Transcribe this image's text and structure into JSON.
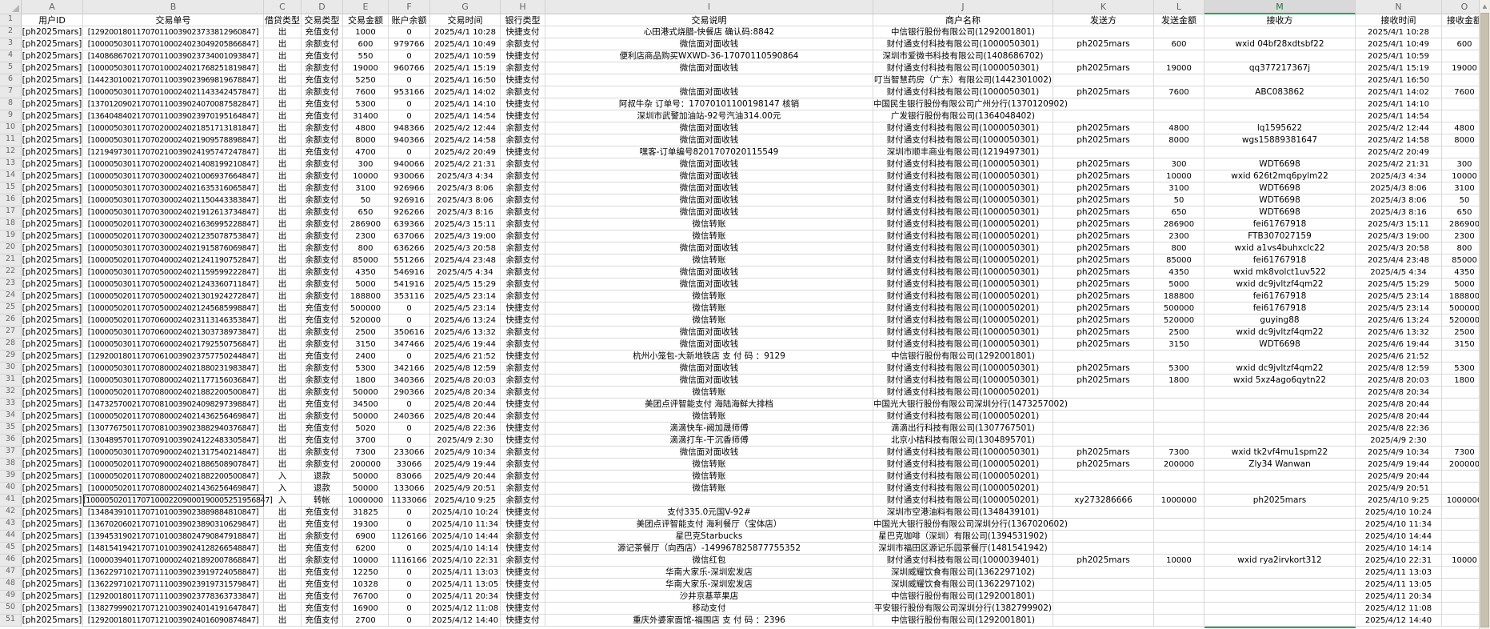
{
  "sheet": {
    "column_letters": [
      "A",
      "B",
      "C",
      "D",
      "E",
      "F",
      "G",
      "H",
      "I",
      "J",
      "K",
      "L",
      "M",
      "N",
      "O"
    ],
    "selected_column": "M",
    "active_cell": {
      "column": "B",
      "row": 41
    },
    "header_row": [
      "用户ID",
      "交易单号",
      "借贷类型",
      "交易类型",
      "交易金额",
      "账户余额",
      "交易时间",
      "银行类型",
      "交易说明",
      "商户名称",
      "发送方",
      "发送金额",
      "接收方",
      "接收时间",
      "接收金额"
    ],
    "rows": [
      [
        "[ph2025mars]",
        "[129200180117070110039023733812960847]",
        "出",
        "充值支付",
        "1000",
        "0",
        "2025/4/1 10:28",
        "快捷支付",
        "心田港式烧腊-快餐店 确认码:8842",
        "中信银行股份有限公司(1292001801)",
        "",
        "",
        "",
        "2025/4/1 10:28",
        ""
      ],
      [
        "[ph2025mars]",
        "[100005030117070100024023049205866847]",
        "出",
        "余额支付",
        "600",
        "979766",
        "2025/4/1 10:49",
        "余额支付",
        "微信面对面收钱",
        "财付通支付科技有限公司(1000050301)",
        "ph2025mars",
        "600",
        "wxid 04bf28xdtsbf22",
        "2025/4/1 10:49",
        "600"
      ],
      [
        "[ph2025mars]",
        "[140868670217070110039023734001093847]",
        "出",
        "充值支付",
        "550",
        "0",
        "2025/4/1 10:59",
        "快捷支付",
        "便利店商品购买WXWD-36-17070110590864",
        "深圳市爱微书科技有限公司(1408686702)",
        "",
        "",
        "",
        "2025/4/1 10:59",
        ""
      ],
      [
        "[ph2025mars]",
        "[100005030117070100024021768251819847]",
        "出",
        "余额支付",
        "19000",
        "960766",
        "2025/4/1 15:19",
        "余额支付",
        "微信面对面收钱",
        "财付通支付科技有限公司(1000050301)",
        "ph2025mars",
        "19000",
        "qq377217367j",
        "2025/4/1 15:19",
        "19000"
      ],
      [
        "[ph2025mars]",
        "[144230100217070110039023969819678847]",
        "出",
        "充值支付",
        "5250",
        "0",
        "2025/4/1 16:50",
        "快捷支付",
        "",
        "叮当智慧药房（广东）有限公司(1442301002)",
        "",
        "",
        "",
        "2025/4/1 16:50",
        ""
      ],
      [
        "[ph2025mars]",
        "[100005030117070100024021143342457847]",
        "出",
        "余额支付",
        "7600",
        "953166",
        "2025/4/1 14:02",
        "余额支付",
        "微信面对面收钱",
        "财付通支付科技有限公司(1000050301)",
        "ph2025mars",
        "7600",
        "ABC083862",
        "2025/4/1 14:02",
        "7600"
      ],
      [
        "[ph2025mars]",
        "[137012090217070110039024070087582847]",
        "出",
        "充值支付",
        "5300",
        "0",
        "2025/4/1 14:10",
        "快捷支付",
        "阿叔牛杂 订单号：17070101100198147 核销",
        "中国民生银行股份有限公司广州分行(1370120902)",
        "",
        "",
        "",
        "2025/4/1 14:10",
        ""
      ],
      [
        "[ph2025mars]",
        "[136404840217070110039023970195164847]",
        "出",
        "充值支付",
        "31400",
        "0",
        "2025/4/1 14:54",
        "快捷支付",
        "深圳市武警加油站-92号汽油314.00元",
        "广发银行股份有限公司(1364048402)",
        "",
        "",
        "",
        "2025/4/1 14:54",
        ""
      ],
      [
        "[ph2025mars]",
        "[100005030117070200024021851713181847]",
        "出",
        "余额支付",
        "4800",
        "948366",
        "2025/4/2 12:44",
        "余额支付",
        "微信面对面收钱",
        "财付通支付科技有限公司(1000050301)",
        "ph2025mars",
        "4800",
        "lq1595622",
        "2025/4/2 12:44",
        "4800"
      ],
      [
        "[ph2025mars]",
        "[100005030117070200024021909578898847]",
        "出",
        "余额支付",
        "8000",
        "940366",
        "2025/4/2 14:58",
        "余额支付",
        "微信面对面收钱",
        "财付通支付科技有限公司(1000050301)",
        "ph2025mars",
        "8000",
        "wgs15889381647",
        "2025/4/2 14:58",
        "8000"
      ],
      [
        "[ph2025mars]",
        "[121949730117070210039024195747247847]",
        "出",
        "充值支付",
        "4700",
        "0",
        "2025/4/2 20:49",
        "快捷支付",
        "嘿客-订单编号8201707020115549",
        "深圳市顺丰商业有限公司(1219497301)",
        "",
        "",
        "",
        "2025/4/2 20:49",
        ""
      ],
      [
        "[ph2025mars]",
        "[100005030117070200024021408199210847]",
        "出",
        "余额支付",
        "300",
        "940066",
        "2025/4/2 21:31",
        "余额支付",
        "微信面对面收钱",
        "财付通支付科技有限公司(1000050301)",
        "ph2025mars",
        "300",
        "WDT6698",
        "2025/4/2 21:31",
        "300"
      ],
      [
        "[ph2025mars]",
        "[100005030117070300024021006937664847]",
        "出",
        "余额支付",
        "10000",
        "930066",
        "2025/4/3 4:34",
        "余额支付",
        "微信面对面收钱",
        "财付通支付科技有限公司(1000050301)",
        "ph2025mars",
        "10000",
        "wxid 626t2mq6pylm22",
        "2025/4/3 4:34",
        "10000"
      ],
      [
        "[ph2025mars]",
        "[100005030117070300024021635316065847]",
        "出",
        "余额支付",
        "3100",
        "926966",
        "2025/4/3 8:06",
        "余额支付",
        "微信面对面收钱",
        "财付通支付科技有限公司(1000050301)",
        "ph2025mars",
        "3100",
        "WDT6698",
        "2025/4/3 8:06",
        "3100"
      ],
      [
        "[ph2025mars]",
        "[100005030117070300024021150443383847]",
        "出",
        "余额支付",
        "50",
        "926916",
        "2025/4/3 8:06",
        "余额支付",
        "微信面对面收钱",
        "财付通支付科技有限公司(1000050301)",
        "ph2025mars",
        "50",
        "WDT6698",
        "2025/4/3 8:06",
        "50"
      ],
      [
        "[ph2025mars]",
        "[100005030117070300024021912613734847]",
        "出",
        "余额支付",
        "650",
        "926266",
        "2025/4/3 8:16",
        "余额支付",
        "微信面对面收钱",
        "财付通支付科技有限公司(1000050301)",
        "ph2025mars",
        "650",
        "WDT6698",
        "2025/4/3 8:16",
        "650"
      ],
      [
        "[ph2025mars]",
        "[100005020117070300024021636995228847]",
        "出",
        "余额支付",
        "286900",
        "639366",
        "2025/4/3 15:11",
        "余额支付",
        "微信转账",
        "财付通支付科技有限公司(1000050201)",
        "ph2025mars",
        "286900",
        "fei61767918",
        "2025/4/3 15:11",
        "286900"
      ],
      [
        "[ph2025mars]",
        "[100005020117070300024021235078753847]",
        "出",
        "余额支付",
        "2300",
        "637066",
        "2025/4/3 19:00",
        "余额支付",
        "微信转账",
        "财付通支付科技有限公司(1000050201)",
        "ph2025mars",
        "2300",
        "FTB307027159",
        "2025/4/3 19:00",
        "2300"
      ],
      [
        "[ph2025mars]",
        "[100005030117070300024021915876069847]",
        "出",
        "余额支付",
        "800",
        "636266",
        "2025/4/3 20:58",
        "余额支付",
        "微信面对面收钱",
        "财付通支付科技有限公司(1000050301)",
        "ph2025mars",
        "800",
        "wxid a1vs4buhxclc22",
        "2025/4/3 20:58",
        "800"
      ],
      [
        "[ph2025mars]",
        "[100005020117070400024021241190752847]",
        "出",
        "余额支付",
        "85000",
        "551266",
        "2025/4/4 23:48",
        "余额支付",
        "微信转账",
        "财付通支付科技有限公司(1000050201)",
        "ph2025mars",
        "85000",
        "fei61767918",
        "2025/4/4 23:48",
        "85000"
      ],
      [
        "[ph2025mars]",
        "[100005030117070500024021159599222847]",
        "出",
        "余额支付",
        "4350",
        "546916",
        "2025/4/5 4:34",
        "余额支付",
        "微信面对面收钱",
        "财付通支付科技有限公司(1000050301)",
        "ph2025mars",
        "4350",
        "wxid mk8volct1uv522",
        "2025/4/5 4:34",
        "4350"
      ],
      [
        "[ph2025mars]",
        "[100005030117070500024021243360711847]",
        "出",
        "余额支付",
        "5000",
        "541916",
        "2025/4/5 15:29",
        "余额支付",
        "微信面对面收钱",
        "财付通支付科技有限公司(1000050301)",
        "ph2025mars",
        "5000",
        "wxid dc9jvltzf4qm22",
        "2025/4/5 15:29",
        "5000"
      ],
      [
        "[ph2025mars]",
        "[100005020117070500024021301924272847]",
        "出",
        "余额支付",
        "188800",
        "353116",
        "2025/4/5 23:14",
        "余额支付",
        "微信转账",
        "财付通支付科技有限公司(1000050201)",
        "ph2025mars",
        "188800",
        "fei61767918",
        "2025/4/5 23:14",
        "188800"
      ],
      [
        "[ph2025mars]",
        "[100005020117070500024021245685998847]",
        "出",
        "充值支付",
        "500000",
        "0",
        "2025/4/5 23:14",
        "快捷支付",
        "微信转账",
        "财付通支付科技有限公司(1000050201)",
        "ph2025mars",
        "500000",
        "fei61767918",
        "2025/4/5 23:14",
        "500000"
      ],
      [
        "[ph2025mars]",
        "[100005020117070600024023113146353847]",
        "出",
        "充值支付",
        "520000",
        "0",
        "2025/4/6 13:24",
        "快捷支付",
        "微信转账",
        "财付通支付科技有限公司(1000050201)",
        "ph2025mars",
        "520000",
        "guying88",
        "2025/4/6 13:24",
        "520000"
      ],
      [
        "[ph2025mars]",
        "[100005030117070600024021303738973847]",
        "出",
        "余额支付",
        "2500",
        "350616",
        "2025/4/6 13:32",
        "余额支付",
        "微信面对面收钱",
        "财付通支付科技有限公司(1000050301)",
        "ph2025mars",
        "2500",
        "wxid dc9jvltzf4qm22",
        "2025/4/6 13:32",
        "2500"
      ],
      [
        "[ph2025mars]",
        "[100005030117070600024021792550756847]",
        "出",
        "余额支付",
        "3150",
        "347466",
        "2025/4/6 19:44",
        "余额支付",
        "微信面对面收钱",
        "财付通支付科技有限公司(1000050301)",
        "ph2025mars",
        "3150",
        "WDT6698",
        "2025/4/6 19:44",
        "3150"
      ],
      [
        "[ph2025mars]",
        "[129200180117070610039023757750244847]",
        "出",
        "充值支付",
        "2400",
        "0",
        "2025/4/6 21:52",
        "快捷支付",
        "杭州小笼包-大新地铁店 支 付 码 ：9129",
        "中信银行股份有限公司(1292001801)",
        "",
        "",
        "",
        "2025/4/6 21:52",
        ""
      ],
      [
        "[ph2025mars]",
        "[100005030117070800024021880231983847]",
        "出",
        "余额支付",
        "5300",
        "342166",
        "2025/4/8 12:59",
        "余额支付",
        "微信面对面收钱",
        "财付通支付科技有限公司(1000050301)",
        "ph2025mars",
        "5300",
        "wxid dc9jvltzf4qm22",
        "2025/4/8 12:59",
        "5300"
      ],
      [
        "[ph2025mars]",
        "[100005030117070800024021177156036847]",
        "出",
        "余额支付",
        "1800",
        "340366",
        "2025/4/8 20:03",
        "余额支付",
        "微信面对面收钱",
        "财付通支付科技有限公司(1000050301)",
        "ph2025mars",
        "1800",
        "wxid 5xz4ago6qytn22",
        "2025/4/8 20:03",
        "1800"
      ],
      [
        "[ph2025mars]",
        "[100005020117070800024021882200500847]",
        "出",
        "余额支付",
        "50000",
        "290366",
        "2025/4/8 20:34",
        "余额支付",
        "微信转账",
        "财付通支付科技有限公司(1000050201)",
        "",
        "",
        "",
        "2025/4/8 20:34",
        ""
      ],
      [
        "[ph2025mars]",
        "[147325700217070810039024098297398847]",
        "出",
        "充值支付",
        "34500",
        "0",
        "2025/4/8 20:44",
        "快捷支付",
        "美团点评智能支付 海陆海鲜大排档",
        "中国光大银行股份有限公司深圳分行(1473257002)",
        "",
        "",
        "",
        "2025/4/8 20:44",
        ""
      ],
      [
        "[ph2025mars]",
        "[100005020117070800024021436256469847]",
        "出",
        "余额支付",
        "50000",
        "240366",
        "2025/4/8 20:44",
        "余额支付",
        "微信转账",
        "财付通支付科技有限公司(1000050201)",
        "",
        "",
        "",
        "2025/4/8 20:44",
        ""
      ],
      [
        "[ph2025mars]",
        "[130776750117070810039023882940376847]",
        "出",
        "充值支付",
        "5020",
        "0",
        "2025/4/8 22:36",
        "快捷支付",
        "滴滴快车-阙加晟师傅",
        "滴滴出行科技有限公司(1307767501)",
        "",
        "",
        "",
        "2025/4/8 22:36",
        ""
      ],
      [
        "[ph2025mars]",
        "[130489570117070910039024122483305847]",
        "出",
        "充值支付",
        "3700",
        "0",
        "2025/4/9 2:30",
        "快捷支付",
        "滴滴打车-干沉香师傅",
        "北京小桔科技有限公司(1304895701)",
        "",
        "",
        "",
        "2025/4/9 2:30",
        ""
      ],
      [
        "[ph2025mars]",
        "[100005030117070900024021317540214847]",
        "出",
        "余额支付",
        "7300",
        "233066",
        "2025/4/9 10:34",
        "余额支付",
        "微信面对面收钱",
        "财付通支付科技有限公司(1000050301)",
        "ph2025mars",
        "7300",
        "wxid tk2vf4mu1spm22",
        "2025/4/9 10:34",
        "7300"
      ],
      [
        "[ph2025mars]",
        "[100005020117070900024021886508907847]",
        "出",
        "余额支付",
        "200000",
        "33066",
        "2025/4/9 19:44",
        "余额支付",
        "微信转账",
        "财付通支付科技有限公司(1000050201)",
        "ph2025mars",
        "200000",
        "Zly34 Wanwan",
        "2025/4/9 19:44",
        "200000"
      ],
      [
        "[ph2025mars]",
        "[100005020117070800024021882200500847]",
        "入",
        "退款",
        "50000",
        "83066",
        "2025/4/9 20:44",
        "余额支付",
        "微信转账",
        "财付通支付科技有限公司(1000050201)",
        "",
        "",
        "",
        "2025/4/9 20:44",
        ""
      ],
      [
        "[ph2025mars]",
        "[100005020117070800024021436256469847]",
        "入",
        "退款",
        "50000",
        "133066",
        "2025/4/9 20:51",
        "余额支付",
        "微信转账",
        "财付通支付科技有限公司(1000050201)",
        "",
        "",
        "",
        "2025/4/9 20:51",
        ""
      ],
      [
        "[ph2025mars]",
        "[1000050201170710002209000190005251956847]",
        "入",
        "转帐",
        "1000000",
        "1133066",
        "2025/4/10 9:25",
        "余额支付",
        "",
        "财付通支付科技有限公司(1000050201)",
        "xy273286666",
        "1000000",
        "ph2025mars",
        "2025/4/10 9:25",
        "1000000"
      ],
      [
        "[ph2025mars]",
        "[134843910117071010039023889884810847]",
        "出",
        "充值支付",
        "31825",
        "0",
        "2025/4/10 10:24",
        "快捷支付",
        "支付335.0元国V-92#",
        "深圳市空港油料有限公司(1348439101)",
        "",
        "",
        "",
        "2025/4/10 10:24",
        ""
      ],
      [
        "[ph2025mars]",
        "[136702060217071010039023890310629847]",
        "出",
        "充值支付",
        "19300",
        "0",
        "2025/4/10 11:34",
        "快捷支付",
        "美团点评智能支付 海利餐厅（宝体店）",
        "中国光大银行股份有限公司深圳分行(1367020602)",
        "",
        "",
        "",
        "2025/4/10 11:34",
        ""
      ],
      [
        "[ph2025mars]",
        "[139453190217071010038024790847918847]",
        "出",
        "余额支付",
        "6900",
        "1126166",
        "2025/4/10 14:44",
        "余额支付",
        "星巴克Starbucks",
        "星巴克咖啡（深圳）有限公司(1394531902)",
        "",
        "",
        "",
        "2025/4/10 14:44",
        ""
      ],
      [
        "[ph2025mars]",
        "[148154194217071010039024128266548847]",
        "出",
        "充值支付",
        "6200",
        "0",
        "2025/4/10 14:14",
        "快捷支付",
        "源记茶餐厅（向西店）-149967825877755352",
        "深圳市福田区源记乐园茶餐厅(1481541942)",
        "",
        "",
        "",
        "2025/4/10 14:14",
        ""
      ],
      [
        "[ph2025mars]",
        "[100003940117071000024021892007868847]",
        "出",
        "余额支付",
        "10000",
        "1116166",
        "2025/4/10 22:31",
        "余额支付",
        "微信红包",
        "财付通支付科技有限公司(1000039401)",
        "ph2025mars",
        "10000",
        "wxid rya2irvkort312",
        "2025/4/10 22:31",
        "10000"
      ],
      [
        "[ph2025mars]",
        "[136229710217071110039023919724058847]",
        "出",
        "充值支付",
        "12250",
        "0",
        "2025/4/11 13:03",
        "快捷支付",
        "华南大家乐-深圳宏发店",
        "深圳威耀饮食有限公司(1362297102)",
        "",
        "",
        "",
        "2025/4/11 13:03",
        ""
      ],
      [
        "[ph2025mars]",
        "[136229710217071110039023919731579847]",
        "出",
        "充值支付",
        "10328",
        "0",
        "2025/4/11 13:05",
        "快捷支付",
        "华南大家乐-深圳宏发店",
        "深圳威耀饮食有限公司(1362297102)",
        "",
        "",
        "",
        "2025/4/11 13:05",
        ""
      ],
      [
        "[ph2025mars]",
        "[129200180117071110039023778363733847]",
        "出",
        "充值支付",
        "76700",
        "0",
        "2025/4/11 20:34",
        "快捷支付",
        "沙井京基苹果店",
        "中信银行股份有限公司(1292001801)",
        "",
        "",
        "",
        "2025/4/11 20:34",
        ""
      ],
      [
        "[ph2025mars]",
        "[138279990217071210039024014191647847]",
        "出",
        "充值支付",
        "16900",
        "0",
        "2025/4/12 11:08",
        "快捷支付",
        "移动支付",
        "平安银行股份有限公司深圳分行(1382799902)",
        "",
        "",
        "",
        "2025/4/12 11:08",
        ""
      ],
      [
        "[ph2025mars]",
        "[129200180117071210039024016090874847]",
        "出",
        "充值支付",
        "2700",
        "0",
        "2025/4/12 14:40",
        "快捷支付",
        "重庆外婆家面馆-福围店 支 付 码 ：2396",
        "中信银行股份有限公司(1292001801)",
        "",
        "",
        "",
        "2025/4/12 14:40",
        ""
      ]
    ]
  },
  "colors": {
    "accent_green": "#21a366",
    "grid_line": "#d9d9d9",
    "header_bg": "#e9e9e9",
    "selected_header_bg": "#d9d9d9",
    "scrollbar_thumb": "#c9c1b0"
  },
  "icons": {
    "select_all_triangle": "corner-triangle",
    "scroll_up_arrow": "▲"
  }
}
